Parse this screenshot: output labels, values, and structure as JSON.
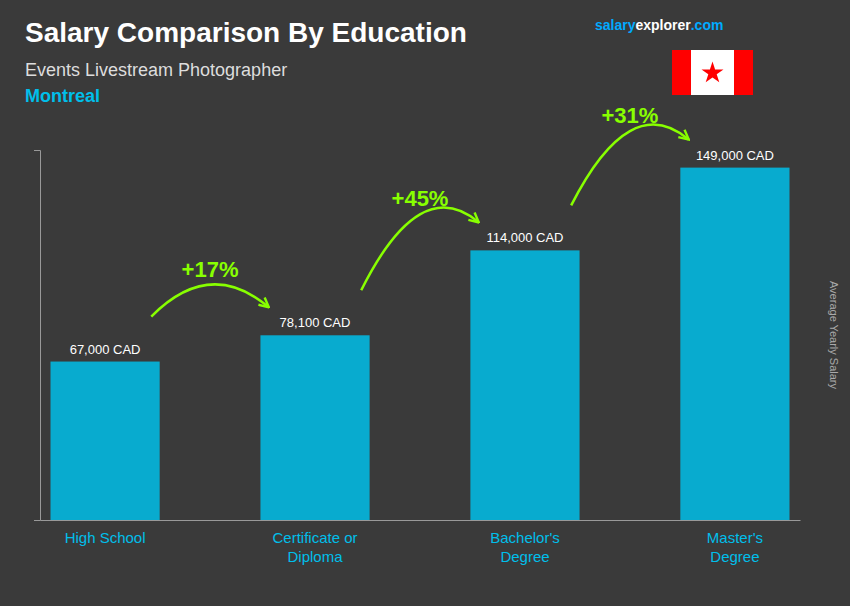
{
  "chart_data": {
    "type": "bar",
    "title": "Salary Comparison By Education",
    "subtitle": "Events Livestream Photographer",
    "ylabel": "Average Yearly Salary",
    "categories": [
      "High School",
      "Certificate or\nDiploma",
      "Bachelor's\nDegree",
      "Master's\nDegree"
    ],
    "values": [
      67000,
      78100,
      114000,
      149000
    ],
    "value_labels": [
      "67,000 CAD",
      "78,100 CAD",
      "114,000 CAD",
      "149,000 CAD"
    ],
    "data_labels": true,
    "change_labels": [
      "+17%",
      "+45%",
      "+31%"
    ],
    "annotations": [
      {
        "text": "Montreal",
        "color": "#00BFEA"
      },
      {
        "text": "salary",
        "color": "#00aaff"
      },
      {
        "text": "explorer",
        "color": "#ffffff"
      },
      {
        "text": ".com",
        "color": "#00aaff"
      }
    ],
    "color": "#00BFEA",
    "ylim": [
      0,
      156450
    ],
    "grid": false,
    "tick_labels": "x"
  }
}
